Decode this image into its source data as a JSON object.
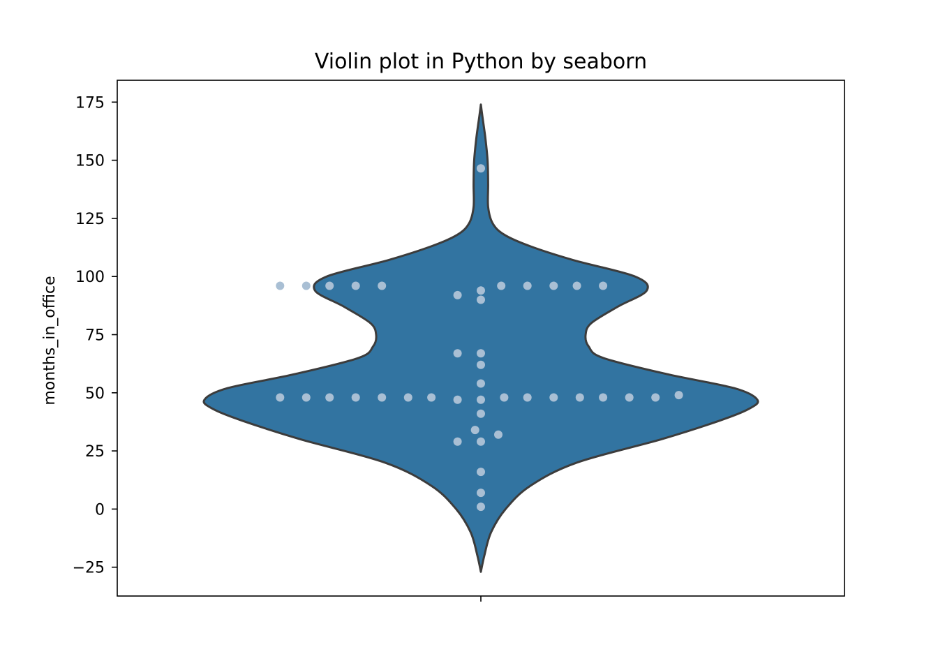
{
  "chart_data": {
    "type": "violin",
    "title": "Violin plot in Python by seaborn",
    "xlabel": "",
    "ylabel": "months_in_office",
    "ylim": [
      -37.4,
      184.4
    ],
    "yticks": [
      -25,
      0,
      25,
      50,
      75,
      100,
      125,
      150,
      175
    ],
    "ytick_labels": [
      "−25",
      "0",
      "25",
      "50",
      "75",
      "100",
      "125",
      "150",
      "175"
    ],
    "violin_color": "#3274a1",
    "violin_edge_color": "#3c3c3c",
    "point_color": "#a9bfd4",
    "density_profile": [
      {
        "y": -27,
        "halfwidth": 0.0
      },
      {
        "y": -20,
        "halfwidth": 0.012
      },
      {
        "y": -10,
        "halfwidth": 0.035
      },
      {
        "y": 0,
        "halfwidth": 0.085
      },
      {
        "y": 10,
        "halfwidth": 0.17
      },
      {
        "y": 20,
        "halfwidth": 0.33
      },
      {
        "y": 30,
        "halfwidth": 0.62
      },
      {
        "y": 38,
        "halfwidth": 0.82
      },
      {
        "y": 43,
        "halfwidth": 0.92
      },
      {
        "y": 47,
        "halfwidth": 0.95
      },
      {
        "y": 52,
        "halfwidth": 0.87
      },
      {
        "y": 58,
        "halfwidth": 0.64
      },
      {
        "y": 65,
        "halfwidth": 0.42
      },
      {
        "y": 70,
        "halfwidth": 0.37
      },
      {
        "y": 75,
        "halfwidth": 0.36
      },
      {
        "y": 80,
        "halfwidth": 0.38
      },
      {
        "y": 87,
        "halfwidth": 0.47
      },
      {
        "y": 94,
        "halfwidth": 0.57
      },
      {
        "y": 100,
        "halfwidth": 0.53
      },
      {
        "y": 107,
        "halfwidth": 0.32
      },
      {
        "y": 113,
        "halfwidth": 0.17
      },
      {
        "y": 118,
        "halfwidth": 0.08
      },
      {
        "y": 123,
        "halfwidth": 0.04
      },
      {
        "y": 130,
        "halfwidth": 0.025
      },
      {
        "y": 140,
        "halfwidth": 0.025
      },
      {
        "y": 150,
        "halfwidth": 0.023
      },
      {
        "y": 160,
        "halfwidth": 0.015
      },
      {
        "y": 170,
        "halfwidth": 0.004
      },
      {
        "y": 174,
        "halfwidth": 0.0
      }
    ],
    "points": [
      {
        "x": 0.0,
        "y": 146.5
      },
      {
        "x": -0.69,
        "y": 96
      },
      {
        "x": -0.6,
        "y": 96
      },
      {
        "x": -0.52,
        "y": 96
      },
      {
        "x": -0.43,
        "y": 96
      },
      {
        "x": -0.34,
        "y": 96
      },
      {
        "x": 0.07,
        "y": 96
      },
      {
        "x": 0.16,
        "y": 96
      },
      {
        "x": 0.25,
        "y": 96
      },
      {
        "x": 0.33,
        "y": 96
      },
      {
        "x": 0.42,
        "y": 96
      },
      {
        "x": 0.0,
        "y": 94
      },
      {
        "x": -0.08,
        "y": 92
      },
      {
        "x": 0.0,
        "y": 90
      },
      {
        "x": -0.08,
        "y": 67
      },
      {
        "x": 0.0,
        "y": 67
      },
      {
        "x": 0.0,
        "y": 62
      },
      {
        "x": 0.0,
        "y": 54
      },
      {
        "x": -0.69,
        "y": 48
      },
      {
        "x": -0.6,
        "y": 48
      },
      {
        "x": -0.52,
        "y": 48
      },
      {
        "x": -0.43,
        "y": 48
      },
      {
        "x": -0.34,
        "y": 48
      },
      {
        "x": -0.25,
        "y": 48
      },
      {
        "x": -0.17,
        "y": 48
      },
      {
        "x": -0.08,
        "y": 47
      },
      {
        "x": 0.0,
        "y": 47
      },
      {
        "x": 0.08,
        "y": 48
      },
      {
        "x": 0.16,
        "y": 48
      },
      {
        "x": 0.25,
        "y": 48
      },
      {
        "x": 0.34,
        "y": 48
      },
      {
        "x": 0.42,
        "y": 48
      },
      {
        "x": 0.51,
        "y": 48
      },
      {
        "x": 0.6,
        "y": 48
      },
      {
        "x": 0.68,
        "y": 49
      },
      {
        "x": 0.0,
        "y": 41
      },
      {
        "x": -0.02,
        "y": 34
      },
      {
        "x": 0.06,
        "y": 32
      },
      {
        "x": -0.08,
        "y": 29
      },
      {
        "x": 0.0,
        "y": 29
      },
      {
        "x": 0.0,
        "y": 16
      },
      {
        "x": 0.0,
        "y": 7
      },
      {
        "x": 0.0,
        "y": 1
      }
    ]
  }
}
